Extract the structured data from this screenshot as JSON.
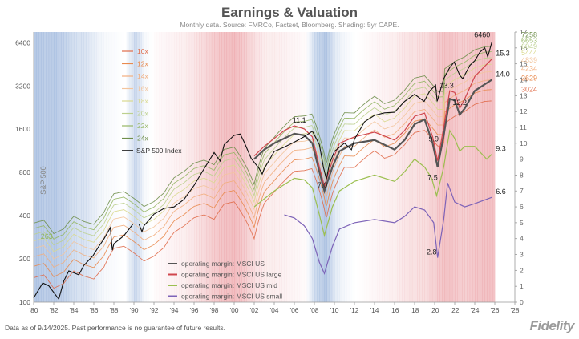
{
  "header": {
    "title": "Earnings & Valuation",
    "subtitle": "Monthly data.  Source: FMRCo, Factset, Bloomberg.  Shading: 5yr CAPE."
  },
  "footer": {
    "disclaimer": "Data as of 9/14/2025. Past performance is no guarantee of future results.",
    "logo": "Fidelity"
  },
  "colors": {
    "sp500": "#111111",
    "op_us": "#555555",
    "op_large": "#d0464d",
    "op_mid": "#9bbf4f",
    "op_small": "#7d63b8",
    "cape_high": "#e6848a",
    "cape_low": "#8ba9d6"
  },
  "chart_data": {
    "type": "line",
    "x_ticks": [
      "'80",
      "'82",
      "'84",
      "'86",
      "'88",
      "'90",
      "'92",
      "'94",
      "'96",
      "'98",
      "'00",
      "'02",
      "'04",
      "'06",
      "'08",
      "'10",
      "'12",
      "'14",
      "'16",
      "'18",
      "'20",
      "'22",
      "'24",
      "'26",
      "'28"
    ],
    "x_tick_years": [
      1980,
      1982,
      1984,
      1986,
      1988,
      1990,
      1992,
      1994,
      1996,
      1998,
      2000,
      2002,
      2004,
      2006,
      2008,
      2010,
      2012,
      2014,
      2016,
      2018,
      2020,
      2022,
      2024,
      2026,
      2028
    ],
    "xlim": [
      1980,
      2028
    ],
    "left_axis": {
      "scale": "log",
      "ticks": [
        100,
        200,
        400,
        800,
        1600,
        3200,
        6400
      ],
      "tick_labels": [
        "100",
        "200",
        "400",
        "800",
        "1600",
        "3200",
        "6400"
      ],
      "ylim": [
        100,
        7600
      ]
    },
    "right_axis": {
      "scale": "linear",
      "ticks": [
        0,
        1,
        2,
        3,
        4,
        5,
        6,
        7,
        8,
        9,
        10,
        11,
        12,
        13,
        14,
        15,
        16,
        17
      ],
      "tick_labels": [
        "0",
        "1",
        "2",
        "3",
        "4",
        "5",
        "6",
        "7",
        "8",
        "9",
        "10",
        "11",
        "12",
        "13",
        "14",
        "15",
        "16",
        "17"
      ],
      "ylim": [
        0,
        17
      ]
    },
    "rotated_label": "S&P 500",
    "legend_top": [
      "10x",
      "12x",
      "14x",
      "16x",
      "18x",
      "20x",
      "22x",
      "24x",
      "S&P 500 Index"
    ],
    "legend_bottom": [
      "operating margin: MSCI US",
      "operating margin: MSCI US large",
      "operating margin: MSCI US mid",
      "operating margin: MSCI US small"
    ],
    "pe_bands": [
      {
        "name": "10x",
        "multiple": 10,
        "color": "#e06c4a",
        "end_label": "3024",
        "end_value": 3024
      },
      {
        "name": "12x",
        "multiple": 12,
        "color": "#e98a4e",
        "end_label": "3629",
        "end_value": 3629
      },
      {
        "name": "14x",
        "multiple": 14,
        "color": "#f2ae7e",
        "end_label": "4234",
        "end_value": 4234
      },
      {
        "name": "16x",
        "multiple": 16,
        "color": "#f3c59d",
        "end_label": "4839",
        "end_value": 4839
      },
      {
        "name": "18x",
        "multiple": 18,
        "color": "#d9d98e",
        "end_label": "5444",
        "end_value": 5444
      },
      {
        "name": "20x",
        "multiple": 20,
        "color": "#bcd08e",
        "end_label": "6049",
        "end_value": 6049
      },
      {
        "name": "22x",
        "multiple": 22,
        "color": "#96b765",
        "end_label": "6653",
        "end_value": 6653
      },
      {
        "name": "24x",
        "multiple": 24,
        "color": "#6f8f4b",
        "end_label": "7258",
        "end_value": 7258
      }
    ],
    "earnings_points": [
      [
        1980,
        14.8
      ],
      [
        1981,
        15.5
      ],
      [
        1982,
        12.5
      ],
      [
        1983,
        13.5
      ],
      [
        1984,
        16.5
      ],
      [
        1985,
        15.2
      ],
      [
        1986,
        14.5
      ],
      [
        1987,
        17.5
      ],
      [
        1988,
        23.7
      ],
      [
        1989,
        24.5
      ],
      [
        1990,
        22.0
      ],
      [
        1991,
        19.3
      ],
      [
        1992,
        20.9
      ],
      [
        1993,
        24.0
      ],
      [
        1994,
        30.6
      ],
      [
        1995,
        33.9
      ],
      [
        1996,
        38.7
      ],
      [
        1997,
        40.6
      ],
      [
        1998,
        37.7
      ],
      [
        1999,
        48.2
      ],
      [
        2000,
        50.0
      ],
      [
        2001,
        38.9
      ],
      [
        2002,
        27.6
      ],
      [
        2003,
        48.7
      ],
      [
        2004,
        58.5
      ],
      [
        2005,
        69.9
      ],
      [
        2006,
        81.5
      ],
      [
        2007,
        82.5
      ],
      [
        2007.75,
        85.0
      ],
      [
        2008.5,
        60.0
      ],
      [
        2009.2,
        38.0
      ],
      [
        2009.8,
        56.9
      ],
      [
        2011,
        86.9
      ],
      [
        2012,
        86.5
      ],
      [
        2013,
        100.2
      ],
      [
        2014,
        113.0
      ],
      [
        2015,
        100.4
      ],
      [
        2016,
        106.3
      ],
      [
        2017,
        124.5
      ],
      [
        2018,
        151.6
      ],
      [
        2019,
        157.1
      ],
      [
        2020.3,
        122.0
      ],
      [
        2020.9,
        122.4
      ],
      [
        2021,
        175.5
      ],
      [
        2022,
        196.9
      ],
      [
        2023,
        213.0
      ],
      [
        2024,
        238.0
      ],
      [
        2025,
        250.0
      ],
      [
        2025.7,
        252.0
      ]
    ],
    "sp500_points": [
      [
        1980,
        107
      ],
      [
        1980.9,
        136
      ],
      [
        1981.5,
        130
      ],
      [
        1982.5,
        105
      ],
      [
        1983,
        140
      ],
      [
        1983.5,
        165
      ],
      [
        1984,
        160
      ],
      [
        1984.5,
        155
      ],
      [
        1985,
        180
      ],
      [
        1985.9,
        210
      ],
      [
        1986.5,
        245
      ],
      [
        1987,
        275
      ],
      [
        1987.65,
        330
      ],
      [
        1987.85,
        230
      ],
      [
        1988,
        255
      ],
      [
        1989,
        290
      ],
      [
        1989.9,
        350
      ],
      [
        1990.5,
        350
      ],
      [
        1990.8,
        310
      ],
      [
        1991,
        340
      ],
      [
        1992,
        410
      ],
      [
        1993,
        450
      ],
      [
        1994,
        460
      ],
      [
        1995,
        520
      ],
      [
        1996,
        650
      ],
      [
        1997,
        850
      ],
      [
        1998,
        1100
      ],
      [
        1998.6,
        960
      ],
      [
        1999,
        1250
      ],
      [
        2000,
        1450
      ],
      [
        2000.6,
        1480
      ],
      [
        2001,
        1300
      ],
      [
        2001.7,
        1000
      ],
      [
        2002.5,
        850
      ],
      [
        2002.8,
        780
      ],
      [
        2003,
        850
      ],
      [
        2004,
        1120
      ],
      [
        2005,
        1200
      ],
      [
        2006,
        1300
      ],
      [
        2007,
        1420
      ],
      [
        2007.8,
        1550
      ],
      [
        2008.5,
        1250
      ],
      [
        2008.9,
        870
      ],
      [
        2009.2,
        720
      ],
      [
        2009.5,
        920
      ],
      [
        2010,
        1120
      ],
      [
        2011,
        1280
      ],
      [
        2011.7,
        1150
      ],
      [
        2012,
        1360
      ],
      [
        2013,
        1800
      ],
      [
        2014,
        2000
      ],
      [
        2015,
        2080
      ],
      [
        2016,
        2100
      ],
      [
        2017,
        2500
      ],
      [
        2018,
        2800
      ],
      [
        2018.95,
        2500
      ],
      [
        2019.5,
        2950
      ],
      [
        2020.1,
        3250
      ],
      [
        2020.25,
        2500
      ],
      [
        2020.9,
        3600
      ],
      [
        2021.5,
        4300
      ],
      [
        2021.95,
        4700
      ],
      [
        2022.5,
        3800
      ],
      [
        2022.8,
        3600
      ],
      [
        2023.5,
        4450
      ],
      [
        2024,
        4800
      ],
      [
        2024.5,
        5500
      ],
      [
        2025,
        5900
      ],
      [
        2025.3,
        5100
      ],
      [
        2025.7,
        6460
      ]
    ],
    "sp500_last_label": "6460",
    "margin_series": [
      {
        "name": "operating margin: MSCI US",
        "key": "op_us",
        "points": [
          [
            2002,
            9.0
          ],
          [
            2003,
            9.6
          ],
          [
            2004,
            10.0
          ],
          [
            2005,
            10.3
          ],
          [
            2006,
            10.6
          ],
          [
            2007,
            10.5
          ],
          [
            2007.8,
            10.0
          ],
          [
            2008.5,
            8.2
          ],
          [
            2009,
            7.0
          ],
          [
            2009.8,
            8.5
          ],
          [
            2010.5,
            9.5
          ],
          [
            2012,
            10.0
          ],
          [
            2014,
            10.2
          ],
          [
            2016,
            9.6
          ],
          [
            2017,
            10.2
          ],
          [
            2018,
            11.2
          ],
          [
            2019,
            11.5
          ],
          [
            2019.8,
            10.0
          ],
          [
            2020.3,
            8.5
          ],
          [
            2020.9,
            10.5
          ],
          [
            2021.5,
            12.8
          ],
          [
            2022,
            12.7
          ],
          [
            2022.5,
            11.8
          ],
          [
            2023,
            12.2
          ],
          [
            2024,
            13.3
          ],
          [
            2025.7,
            14.0
          ]
        ]
      },
      {
        "name": "operating margin: MSCI US large",
        "key": "op_large",
        "points": [
          [
            2002,
            9.2
          ],
          [
            2003,
            9.8
          ],
          [
            2004,
            10.3
          ],
          [
            2005,
            10.8
          ],
          [
            2006,
            11.1
          ],
          [
            2007,
            10.9
          ],
          [
            2007.8,
            10.4
          ],
          [
            2008.5,
            8.5
          ],
          [
            2009,
            7.3
          ],
          [
            2009.8,
            8.9
          ],
          [
            2010.5,
            10.0
          ],
          [
            2012,
            10.4
          ],
          [
            2014,
            10.7
          ],
          [
            2016,
            10.2
          ],
          [
            2017,
            10.8
          ],
          [
            2018,
            11.7
          ],
          [
            2019,
            11.9
          ],
          [
            2019.8,
            10.4
          ],
          [
            2020.3,
            8.9
          ],
          [
            2020.9,
            11.0
          ],
          [
            2021.5,
            13.3
          ],
          [
            2022,
            13.2
          ],
          [
            2022.5,
            12.2
          ],
          [
            2023,
            12.8
          ],
          [
            2024,
            14.2
          ],
          [
            2025.7,
            15.3
          ]
        ]
      },
      {
        "name": "operating margin: MSCI US mid",
        "key": "op_mid",
        "points": [
          [
            2002,
            6.0
          ],
          [
            2003,
            6.5
          ],
          [
            2004,
            7.0
          ],
          [
            2005,
            7.4
          ],
          [
            2006,
            7.8
          ],
          [
            2007,
            7.7
          ],
          [
            2007.8,
            7.2
          ],
          [
            2008.5,
            5.5
          ],
          [
            2009,
            4.2
          ],
          [
            2009.8,
            6.0
          ],
          [
            2010.5,
            7.0
          ],
          [
            2012,
            7.6
          ],
          [
            2014,
            8.0
          ],
          [
            2016,
            7.6
          ],
          [
            2017,
            8.2
          ],
          [
            2018,
            9.0
          ],
          [
            2019,
            8.5
          ],
          [
            2019.7,
            7.8
          ],
          [
            2020.2,
            6.7
          ],
          [
            2020.9,
            8.5
          ],
          [
            2021.5,
            10.8
          ],
          [
            2022,
            10.3
          ],
          [
            2022.5,
            9.5
          ],
          [
            2023,
            9.8
          ],
          [
            2024,
            9.8
          ],
          [
            2025.2,
            9.0
          ],
          [
            2025.7,
            9.3
          ]
        ]
      },
      {
        "name": "operating margin: MSCI US small",
        "key": "op_small",
        "points": [
          [
            2005,
            5.5
          ],
          [
            2006,
            5.3
          ],
          [
            2007,
            4.8
          ],
          [
            2007.8,
            4.0
          ],
          [
            2008.5,
            2.5
          ],
          [
            2009,
            1.8
          ],
          [
            2009.8,
            3.5
          ],
          [
            2010.5,
            4.6
          ],
          [
            2012,
            5.0
          ],
          [
            2014,
            5.2
          ],
          [
            2016,
            5.0
          ],
          [
            2017,
            5.4
          ],
          [
            2018,
            6.0
          ],
          [
            2019,
            5.8
          ],
          [
            2019.9,
            5.0
          ],
          [
            2020.3,
            2.8
          ],
          [
            2020.9,
            5.2
          ],
          [
            2021.3,
            7.5
          ],
          [
            2022,
            6.3
          ],
          [
            2023,
            6.0
          ],
          [
            2024,
            6.2
          ],
          [
            2025.7,
            6.6
          ]
        ]
      }
    ],
    "annotations": [
      {
        "text": "11.1",
        "x": 2006.5,
        "y": 11.1,
        "axis": "right"
      },
      {
        "text": "7.0",
        "x": 2008.8,
        "y": 7.0,
        "axis": "right"
      },
      {
        "text": "9.9",
        "x": 2019.9,
        "y": 9.9,
        "axis": "right"
      },
      {
        "text": "13.3",
        "x": 2021.2,
        "y": 13.3,
        "axis": "right"
      },
      {
        "text": "12.2",
        "x": 2022.5,
        "y": 12.2,
        "axis": "right"
      },
      {
        "text": "7.5",
        "x": 2019.8,
        "y": 7.5,
        "axis": "right"
      },
      {
        "text": "2.8",
        "x": 2019.7,
        "y": 2.8,
        "axis": "right"
      },
      {
        "text": "15.3",
        "x": 2026.8,
        "y": 15.3,
        "axis": "right"
      },
      {
        "text": "14.0",
        "x": 2026.8,
        "y": 14.0,
        "axis": "right"
      },
      {
        "text": "9.3",
        "x": 2026.6,
        "y": 9.3,
        "axis": "right"
      },
      {
        "text": "6.6",
        "x": 2026.6,
        "y": 6.6,
        "axis": "right"
      },
      {
        "text": "263",
        "x": 1981.3,
        "y": 263,
        "axis": "left"
      }
    ],
    "cape_shading": [
      [
        1980,
        -0.9
      ],
      [
        1981,
        -0.8
      ],
      [
        1982,
        -0.85
      ],
      [
        1983,
        -0.7
      ],
      [
        1984,
        -0.5
      ],
      [
        1985,
        -0.45
      ],
      [
        1986,
        -0.25
      ],
      [
        1987,
        -0.1
      ],
      [
        1988,
        -0.05
      ],
      [
        1989,
        0.0
      ],
      [
        1990,
        -0.6
      ],
      [
        1991,
        -0.1
      ],
      [
        1992,
        0.05
      ],
      [
        1993,
        0.1
      ],
      [
        1994,
        0.15
      ],
      [
        1995,
        0.2
      ],
      [
        1996,
        0.3
      ],
      [
        1997,
        0.45
      ],
      [
        1998,
        0.6
      ],
      [
        1999,
        0.7
      ],
      [
        2000,
        0.75
      ],
      [
        2001,
        0.55
      ],
      [
        2002,
        0.35
      ],
      [
        2003,
        0.2
      ],
      [
        2004,
        0.2
      ],
      [
        2005,
        0.15
      ],
      [
        2006,
        0.1
      ],
      [
        2007,
        0.05
      ],
      [
        2008,
        -0.6
      ],
      [
        2009,
        -0.9
      ],
      [
        2010,
        -0.3
      ],
      [
        2011,
        -0.1
      ],
      [
        2012,
        0.0
      ],
      [
        2013,
        0.05
      ],
      [
        2014,
        0.1
      ],
      [
        2015,
        0.15
      ],
      [
        2016,
        0.2
      ],
      [
        2017,
        0.3
      ],
      [
        2018,
        0.35
      ],
      [
        2019,
        0.4
      ],
      [
        2020,
        0.55
      ],
      [
        2021,
        0.7
      ],
      [
        2022,
        0.6
      ],
      [
        2023,
        0.55
      ],
      [
        2024,
        0.65
      ],
      [
        2025,
        0.7
      ]
    ]
  }
}
